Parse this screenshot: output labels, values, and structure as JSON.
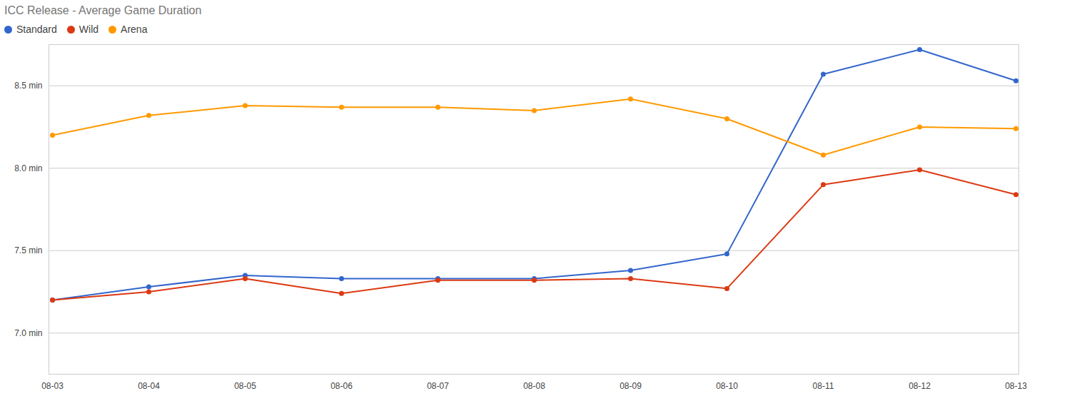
{
  "chart_data": {
    "type": "line",
    "title": "ICC Release - Average Game Duration",
    "x": [
      "08-03",
      "08-04",
      "08-05",
      "08-06",
      "08-07",
      "08-08",
      "08-09",
      "08-10",
      "08-11",
      "08-12",
      "08-13"
    ],
    "series": [
      {
        "name": "Standard",
        "color": "#3366cc",
        "values": [
          7.2,
          7.28,
          7.35,
          7.33,
          7.33,
          7.33,
          7.38,
          7.48,
          8.57,
          8.72,
          8.53
        ]
      },
      {
        "name": "Wild",
        "color": "#dc3912",
        "values": [
          7.2,
          7.25,
          7.33,
          7.24,
          7.32,
          7.32,
          7.33,
          7.27,
          7.9,
          7.99,
          7.84
        ]
      },
      {
        "name": "Arena",
        "color": "#ff9900",
        "values": [
          8.2,
          8.32,
          8.38,
          8.37,
          8.37,
          8.35,
          8.42,
          8.3,
          8.08,
          8.25,
          8.24
        ]
      }
    ],
    "ylim": [
      6.75,
      8.75
    ],
    "yticks": [
      {
        "value": 7.0,
        "label": "7.0 min"
      },
      {
        "value": 7.5,
        "label": "7.5 min"
      },
      {
        "value": 8.0,
        "label": "8.0 min"
      },
      {
        "value": 8.5,
        "label": "8.5 min"
      }
    ],
    "grid": true,
    "legend": "top",
    "marker": "circle"
  }
}
